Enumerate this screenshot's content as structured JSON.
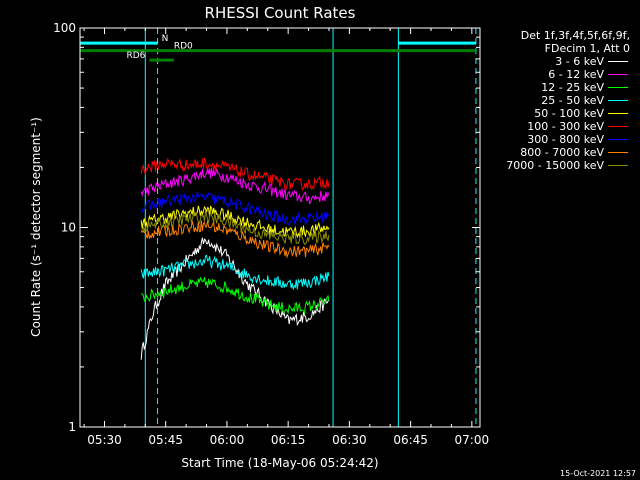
{
  "chart_data": {
    "type": "line",
    "title": "RHESSI Count Rates",
    "xlabel": "Start Time (18-May-06 05:24:42)",
    "ylabel": "Count Rate (s⁻¹ detector segment⁻¹)",
    "y_scale": "log",
    "ylim": [
      1,
      100
    ],
    "xlim": [
      "05:24",
      "07:02"
    ],
    "x_ticks": [
      "05:30",
      "05:45",
      "06:00",
      "06:15",
      "06:30",
      "06:45",
      "07:00"
    ],
    "y_ticks": [
      "1",
      "10",
      "100"
    ],
    "grid": false,
    "legend_position": "right",
    "legend_header": [
      "Det 1f,3f,4f,5f,6f,9f,",
      "FDecim 1, Att 0"
    ],
    "series": [
      {
        "name": "3 - 6 keV",
        "color": "#ffffff",
        "x": [
          "05:39",
          "05:42",
          "05:45",
          "05:50",
          "05:55",
          "06:00",
          "06:05",
          "06:10",
          "06:15",
          "06:20",
          "06:25"
        ],
        "values": [
          2.3,
          3.8,
          5.2,
          6.8,
          8.8,
          7.2,
          5.2,
          4.2,
          3.4,
          3.6,
          4.3
        ]
      },
      {
        "name": "6 - 12 keV",
        "color": "#ff00ff",
        "x": [
          "05:39",
          "05:45",
          "05:50",
          "05:55",
          "06:00",
          "06:05",
          "06:10",
          "06:15",
          "06:20",
          "06:25"
        ],
        "values": [
          15,
          16.5,
          17.5,
          19,
          18,
          16.5,
          15.5,
          14.5,
          14,
          14.5
        ]
      },
      {
        "name": "12 - 25 keV",
        "color": "#00ff00",
        "x": [
          "05:39",
          "05:45",
          "05:50",
          "05:55",
          "06:00",
          "06:05",
          "06:10",
          "06:15",
          "06:20",
          "06:25"
        ],
        "values": [
          4.4,
          4.8,
          5.1,
          5.3,
          5.0,
          4.5,
          4.1,
          3.9,
          4.0,
          4.3
        ]
      },
      {
        "name": "25 - 50 keV",
        "color": "#00ffff",
        "x": [
          "05:39",
          "05:45",
          "05:50",
          "05:55",
          "06:00",
          "06:05",
          "06:10",
          "06:15",
          "06:20",
          "06:25"
        ],
        "values": [
          5.8,
          6.1,
          6.5,
          6.8,
          6.4,
          5.8,
          5.4,
          5.2,
          5.3,
          5.7
        ]
      },
      {
        "name": "50 - 100 keV",
        "color": "#ffff00",
        "x": [
          "05:39",
          "05:45",
          "05:50",
          "05:55",
          "06:00",
          "06:05",
          "06:10",
          "06:15",
          "06:20",
          "06:25"
        ],
        "values": [
          10.5,
          11.2,
          11.8,
          12.2,
          11.5,
          10.6,
          9.8,
          9.5,
          9.6,
          10.0
        ]
      },
      {
        "name": "100 - 300 keV",
        "color": "#ff0000",
        "x": [
          "05:39",
          "05:45",
          "05:50",
          "05:55",
          "06:00",
          "06:05",
          "06:10",
          "06:15",
          "06:20",
          "06:25"
        ],
        "values": [
          19.5,
          21,
          20.5,
          21,
          20,
          18.5,
          17.5,
          16.5,
          16.5,
          17
        ]
      },
      {
        "name": "300 - 800 keV",
        "color": "#0000ff",
        "x": [
          "05:39",
          "05:45",
          "05:50",
          "05:55",
          "06:00",
          "06:05",
          "06:10",
          "06:15",
          "06:20",
          "06:25"
        ],
        "values": [
          12.5,
          13.5,
          14.0,
          14.2,
          13.5,
          12.5,
          11.5,
          11.0,
          11.0,
          11.5
        ]
      },
      {
        "name": "800 - 7000 keV",
        "color": "#ff8000",
        "x": [
          "05:39",
          "05:45",
          "05:50",
          "05:55",
          "06:00",
          "06:05",
          "06:10",
          "06:15",
          "06:20",
          "06:25"
        ],
        "values": [
          9.2,
          9.6,
          10.0,
          10.3,
          9.7,
          8.8,
          8.0,
          7.6,
          7.6,
          8.0
        ]
      },
      {
        "name": "7000 - 15000 keV",
        "color": "#8a8a00",
        "x": [
          "05:39",
          "05:45",
          "05:50",
          "05:55",
          "06:00",
          "06:05",
          "06:10",
          "06:15",
          "06:20",
          "06:25"
        ],
        "values": [
          10.0,
          10.6,
          11.0,
          11.4,
          10.7,
          9.8,
          9.1,
          8.8,
          8.8,
          9.2
        ]
      }
    ],
    "annotations": {
      "solid_vlines": {
        "color": "#00ffff",
        "x": [
          "05:24",
          "05:40",
          "06:26",
          "06:42"
        ]
      },
      "dashed_vlines": {
        "color": "#00ffff",
        "x": [
          "05:43",
          "07:01"
        ]
      },
      "flag_bars": [
        {
          "label": "N",
          "color": "#00ffff",
          "segments": [
            [
              "05:24",
              "05:43"
            ],
            [
              "06:42",
              "07:01"
            ]
          ],
          "level": 84
        },
        {
          "label": "RD0",
          "color": "#008000",
          "segments": [
            [
              "05:24",
              "07:01"
            ]
          ],
          "level": 77
        },
        {
          "label": "RD6",
          "color": "#008000",
          "segments": [
            [
              "05:41",
              "05:47"
            ]
          ],
          "level": 69
        }
      ]
    }
  },
  "footer": {
    "timestamp": "15-Oct-2021 12:57"
  }
}
